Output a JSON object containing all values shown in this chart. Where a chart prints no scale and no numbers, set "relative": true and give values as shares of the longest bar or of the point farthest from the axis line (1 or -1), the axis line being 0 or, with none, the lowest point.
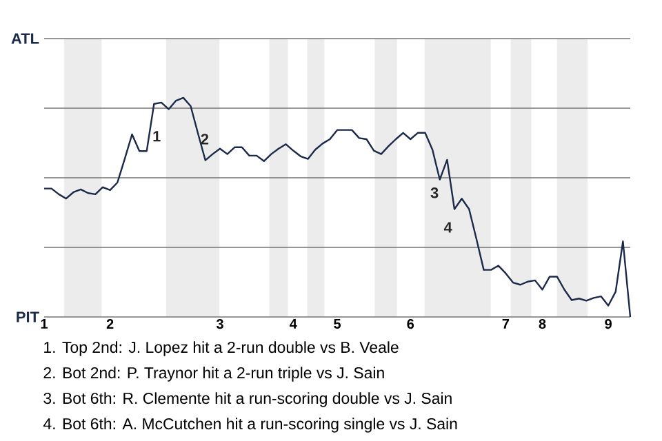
{
  "chart_data": {
    "type": "line",
    "relative": true,
    "categories": [
      "1",
      null,
      null,
      null,
      null,
      null,
      null,
      null,
      null,
      "2",
      null,
      null,
      null,
      null,
      null,
      null,
      null,
      null,
      null,
      null,
      null,
      null,
      null,
      null,
      "3",
      null,
      null,
      null,
      null,
      null,
      null,
      null,
      null,
      null,
      "4",
      null,
      null,
      null,
      null,
      null,
      "5",
      null,
      null,
      null,
      null,
      null,
      null,
      null,
      null,
      null,
      "6",
      null,
      null,
      null,
      null,
      null,
      null,
      null,
      null,
      null,
      null,
      null,
      null,
      "7",
      null,
      null,
      null,
      null,
      "8",
      null,
      null,
      null,
      null,
      null,
      null,
      null,
      null,
      "9",
      null,
      null,
      null
    ],
    "grid": "y",
    "series": [
      {
        "color": "#1b2a4a",
        "values": [
          0.586,
          0.586,
          0.56,
          0.54,
          0.569,
          0.582,
          0.565,
          0.56,
          0.592,
          0.579,
          0.613,
          0.721,
          0.833,
          0.757,
          0.757,
          0.972,
          0.978,
          0.948,
          0.987,
          1,
          0.962,
          0.837,
          0.715,
          0.743,
          0.768,
          0.743,
          0.774,
          0.774,
          0.736,
          0.736,
          0.711,
          0.743,
          0.768,
          0.788,
          0.759,
          0.733,
          0.721,
          0.763,
          0.791,
          0.811,
          0.853,
          0.853,
          0.853,
          0.816,
          0.811,
          0.759,
          0.743,
          0.779,
          0.811,
          0.84,
          0.811,
          0.84,
          0.84,
          0.763,
          0.627,
          0.717,
          0.492,
          0.54,
          0.492,
          0.356,
          0.215,
          0.215,
          0.234,
          0.199,
          0.157,
          0.147,
          0.161,
          0.167,
          0.125,
          0.184,
          0.184,
          0.125,
          0.077,
          0.084,
          0.074,
          0.087,
          0.094,
          0.052,
          0.115,
          0.345,
          0
        ]
      }
    ],
    "annotations": [
      "ATL",
      "PIT",
      "1",
      "2",
      "3",
      "4",
      "1. Top 2nd: J. Lopez hit a 2-run double vs B. Veale",
      "2. Bot 2nd: P. Traynor hit a 2-run triple vs J. Sain",
      "3. Bot 6th: R. Clemente hit a run-scoring double vs J. Sain",
      "4. Bot 6th: A. McCutchen hit a run-scoring single vs J. Sain"
    ]
  }
}
